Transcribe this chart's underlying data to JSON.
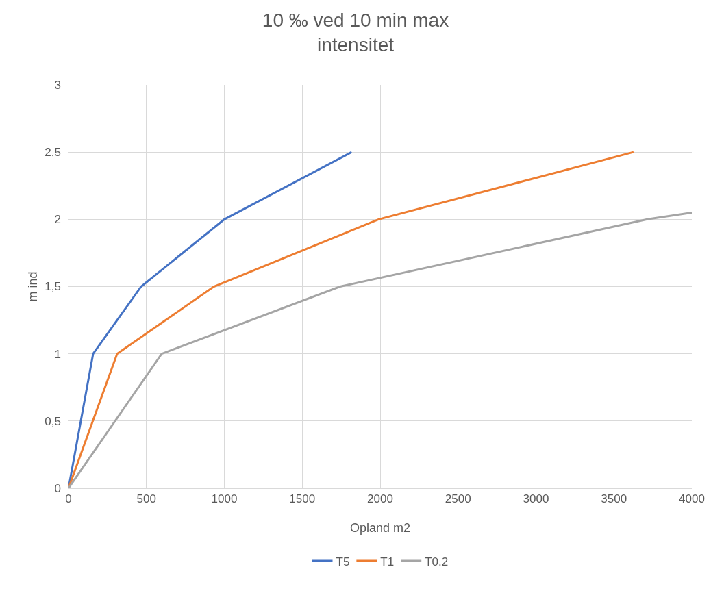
{
  "chart_data": {
    "type": "line",
    "title": "10 ‰ ved 10 min max\nintensitet",
    "xlabel": "Opland m2",
    "ylabel": "m ind",
    "series": [
      {
        "name": "T5",
        "color": "#4472c4",
        "x": [
          0,
          158,
          466,
          1000,
          1817
        ],
        "values": [
          0,
          1,
          1.5,
          2,
          2.5
        ]
      },
      {
        "name": "T1",
        "color": "#ed7d31",
        "x": [
          0,
          312,
          933,
          1990,
          3626
        ],
        "values": [
          0,
          1,
          1.5,
          2,
          2.5
        ]
      },
      {
        "name": "T0.2",
        "color": "#a5a5a5",
        "x": [
          0,
          598,
          1743,
          3714,
          4000
        ],
        "values": [
          0,
          1,
          1.5,
          2,
          2.05
        ]
      }
    ],
    "xlim": [
      0,
      4000
    ],
    "xticks": [
      0,
      500,
      1000,
      1500,
      2000,
      2500,
      3000,
      3500,
      4000
    ],
    "ylim": [
      0,
      3
    ],
    "yticks": [
      0,
      {
        "value": 0.5,
        "label": "0,5"
      },
      1,
      {
        "value": 1.5,
        "label": "1,5"
      },
      2,
      {
        "value": 2.5,
        "label": "2,5"
      },
      3
    ],
    "grid": true,
    "legend": "bottom",
    "marker": "none",
    "line_style": "solid"
  }
}
